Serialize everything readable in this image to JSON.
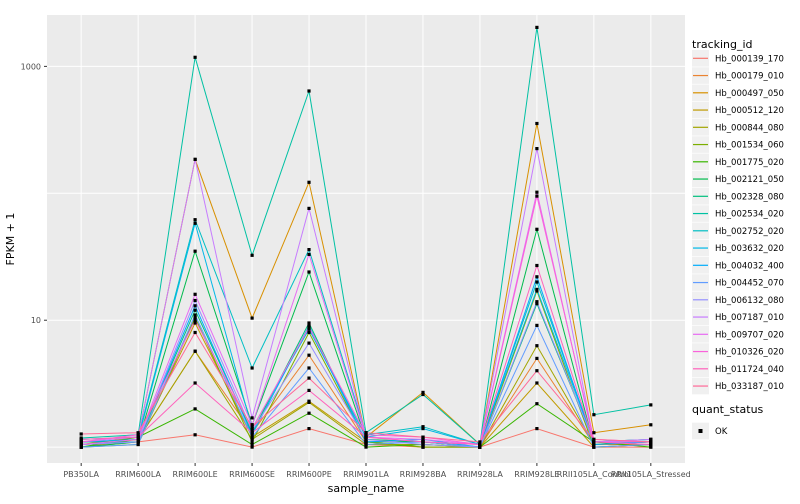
{
  "figure": {
    "background": "#FFFFFF",
    "panel_background": "#EBEBEB",
    "grid_color": "#FFFFFF",
    "axis_text_color": "#4D4D4D",
    "title_text_color": "#000000",
    "tick_mark_color": "#333333",
    "point_color": "#000000",
    "legend_key_background": "#F0F0F0"
  },
  "chart_data": {
    "type": "line",
    "title": "",
    "xlabel": "sample_name",
    "ylabel": "FPKM + 1",
    "y_scale": "log10",
    "ylim": [
      0.75,
      2540
    ],
    "y_ticks": [
      {
        "label": "10",
        "value": 10
      },
      {
        "label": "1000",
        "value": 1000
      }
    ],
    "y_gridlines": [
      1,
      10,
      100,
      1000
    ],
    "grid": "major-only",
    "legend_position": "right",
    "legend_title": "tracking_id",
    "marker": "small-black-square",
    "categories": [
      "PB350LA",
      "RRIM600LA",
      "RRIM600LE",
      "RRIM600SE",
      "RRIM600PE",
      "RRIM901LA",
      "RRIM928BA",
      "RRIM928LA",
      "RRIM928LE",
      "RRII105LA_Control",
      "RRII105LA_Stressed"
    ],
    "series": [
      {
        "name": "Hb_000139_170",
        "color": "#F8766D",
        "values": [
          1.05,
          1.1,
          1.25,
          1.0,
          1.4,
          1.05,
          1.0,
          1.0,
          1.4,
          1.0,
          1.0
        ]
      },
      {
        "name": "Hb_000179_010",
        "color": "#EA8331",
        "values": [
          1.0,
          1.15,
          5.7,
          1.3,
          5.3,
          1.1,
          1.1,
          1.0,
          5.0,
          1.05,
          1.05
        ]
      },
      {
        "name": "Hb_000497_050",
        "color": "#D89000",
        "values": [
          1.05,
          1.2,
          185,
          10.4,
          122,
          1.2,
          2.7,
          1.05,
          355,
          1.3,
          1.5
        ]
      },
      {
        "name": "Hb_000512_120",
        "color": "#C09B00",
        "values": [
          1.0,
          1.1,
          9.5,
          1.2,
          2.3,
          1.1,
          1.0,
          1.0,
          3.2,
          1.0,
          1.05
        ]
      },
      {
        "name": "Hb_000844_080",
        "color": "#A3A500",
        "values": [
          1.05,
          1.15,
          5.7,
          1.15,
          2.25,
          1.05,
          1.05,
          1.0,
          6.3,
          1.05,
          1.1
        ]
      },
      {
        "name": "Hb_001534_060",
        "color": "#7CAE00",
        "values": [
          1.0,
          1.05,
          10.5,
          1.1,
          8.0,
          1.1,
          1.0,
          1.0,
          17.0,
          1.0,
          1.05
        ]
      },
      {
        "name": "Hb_001775_020",
        "color": "#39B600",
        "values": [
          1.0,
          1.2,
          2.0,
          1.05,
          1.85,
          1.0,
          1.05,
          1.0,
          2.2,
          1.1,
          1.0
        ]
      },
      {
        "name": "Hb_002121_050",
        "color": "#00BB4E",
        "values": [
          1.0,
          1.1,
          35.0,
          1.5,
          24.0,
          1.15,
          1.1,
          1.0,
          52.0,
          1.05,
          1.1
        ]
      },
      {
        "name": "Hb_002328_080",
        "color": "#00BF7D",
        "values": [
          1.1,
          1.1,
          12.0,
          1.3,
          9.5,
          1.1,
          1.1,
          1.0,
          13.5,
          1.1,
          1.15
        ]
      },
      {
        "name": "Hb_002534_020",
        "color": "#00C1A3",
        "values": [
          1.18,
          1.25,
          1180,
          32.5,
          640,
          1.3,
          2.6,
          1.05,
          2030,
          1.8,
          2.15
        ]
      },
      {
        "name": "Hb_002752_020",
        "color": "#00BFC4",
        "values": [
          1.15,
          1.2,
          62.0,
          4.2,
          36.0,
          1.25,
          1.45,
          1.05,
          20.0,
          1.1,
          1.15
        ]
      },
      {
        "name": "Hb_003632_020",
        "color": "#00B8E7",
        "values": [
          1.1,
          1.15,
          58.0,
          1.4,
          8.5,
          1.2,
          1.4,
          1.05,
          17.5,
          1.1,
          1.1
        ]
      },
      {
        "name": "Hb_004032_400",
        "color": "#00ACFC",
        "values": [
          1.05,
          1.1,
          13.0,
          1.25,
          9.0,
          1.1,
          1.15,
          1.0,
          22.0,
          1.05,
          1.1
        ]
      },
      {
        "name": "Hb_004452_070",
        "color": "#619CFF",
        "values": [
          1.0,
          1.05,
          11.0,
          1.2,
          4.2,
          1.05,
          1.1,
          1.0,
          9.1,
          1.0,
          1.05
        ]
      },
      {
        "name": "Hb_006132_080",
        "color": "#9590FF",
        "values": [
          1.05,
          1.1,
          14.3,
          1.35,
          6.6,
          1.15,
          1.05,
          1.0,
          14.0,
          1.1,
          1.1
        ]
      },
      {
        "name": "Hb_007187_010",
        "color": "#C77CFF",
        "values": [
          1.1,
          1.2,
          185,
          1.7,
          76.0,
          1.2,
          1.1,
          1.05,
          225,
          1.1,
          1.15
        ]
      },
      {
        "name": "Hb_009707_020",
        "color": "#E76BF3",
        "values": [
          1.05,
          1.15,
          16.0,
          1.5,
          33.0,
          1.2,
          1.15,
          1.05,
          102,
          1.1,
          1.1
        ]
      },
      {
        "name": "Hb_010326_020",
        "color": "#FA62DB",
        "values": [
          1.1,
          1.25,
          10.0,
          1.4,
          8.8,
          1.25,
          1.2,
          1.05,
          95.0,
          1.15,
          1.1
        ]
      },
      {
        "name": "Hb_011724_040",
        "color": "#FF62BC",
        "values": [
          1.15,
          1.2,
          3.2,
          1.3,
          2.8,
          1.2,
          1.1,
          1.05,
          27.0,
          1.1,
          1.05
        ]
      },
      {
        "name": "Hb_033187_010",
        "color": "#FF6A98",
        "values": [
          1.27,
          1.3,
          8.0,
          1.45,
          3.5,
          1.3,
          1.2,
          1.1,
          4.0,
          1.15,
          1.1
        ]
      }
    ],
    "quant_legend": {
      "title": "quant_status",
      "items": [
        {
          "label": "OK"
        }
      ]
    }
  }
}
